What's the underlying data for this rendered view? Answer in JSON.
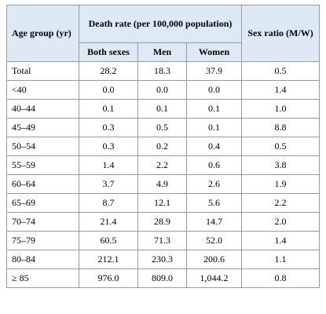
{
  "header": {
    "age_group": "Age group (yr)",
    "death_rate": "Death rate (per 100,000 population)",
    "both_sexes": "Both sexes",
    "men": "Men",
    "women": "Women",
    "sex_ratio": "Sex ratio (M/W)"
  },
  "table": {
    "rows": [
      [
        "Total",
        "28.2",
        "18.3",
        "37.9",
        "0.5"
      ],
      [
        "<40",
        "0.0",
        "0.0",
        "0.0",
        "1.4"
      ],
      [
        "40–44",
        "0.1",
        "0.1",
        "0.1",
        "1.0"
      ],
      [
        "45–49",
        "0.3",
        "0.5",
        "0.1",
        "8.8"
      ],
      [
        "50–54",
        "0.3",
        "0.2",
        "0.4",
        "0.5"
      ],
      [
        "55–59",
        "1.4",
        "2.2",
        "0.6",
        "3.8"
      ],
      [
        "60–64",
        "3.7",
        "4.9",
        "2.6",
        "1.9"
      ],
      [
        "65–69",
        "8.7",
        "12.1",
        "5.6",
        "2.2"
      ],
      [
        "70–74",
        "21.4",
        "28.9",
        "14.7",
        "2.0"
      ],
      [
        "75–79",
        "60.5",
        "71.3",
        "52.0",
        "1.4"
      ],
      [
        "80–84",
        "212.1",
        "230.3",
        "200.6",
        "1.1"
      ],
      [
        "≥ 85",
        "976.0",
        "809.0",
        "1,044.2",
        "0.8"
      ]
    ]
  }
}
